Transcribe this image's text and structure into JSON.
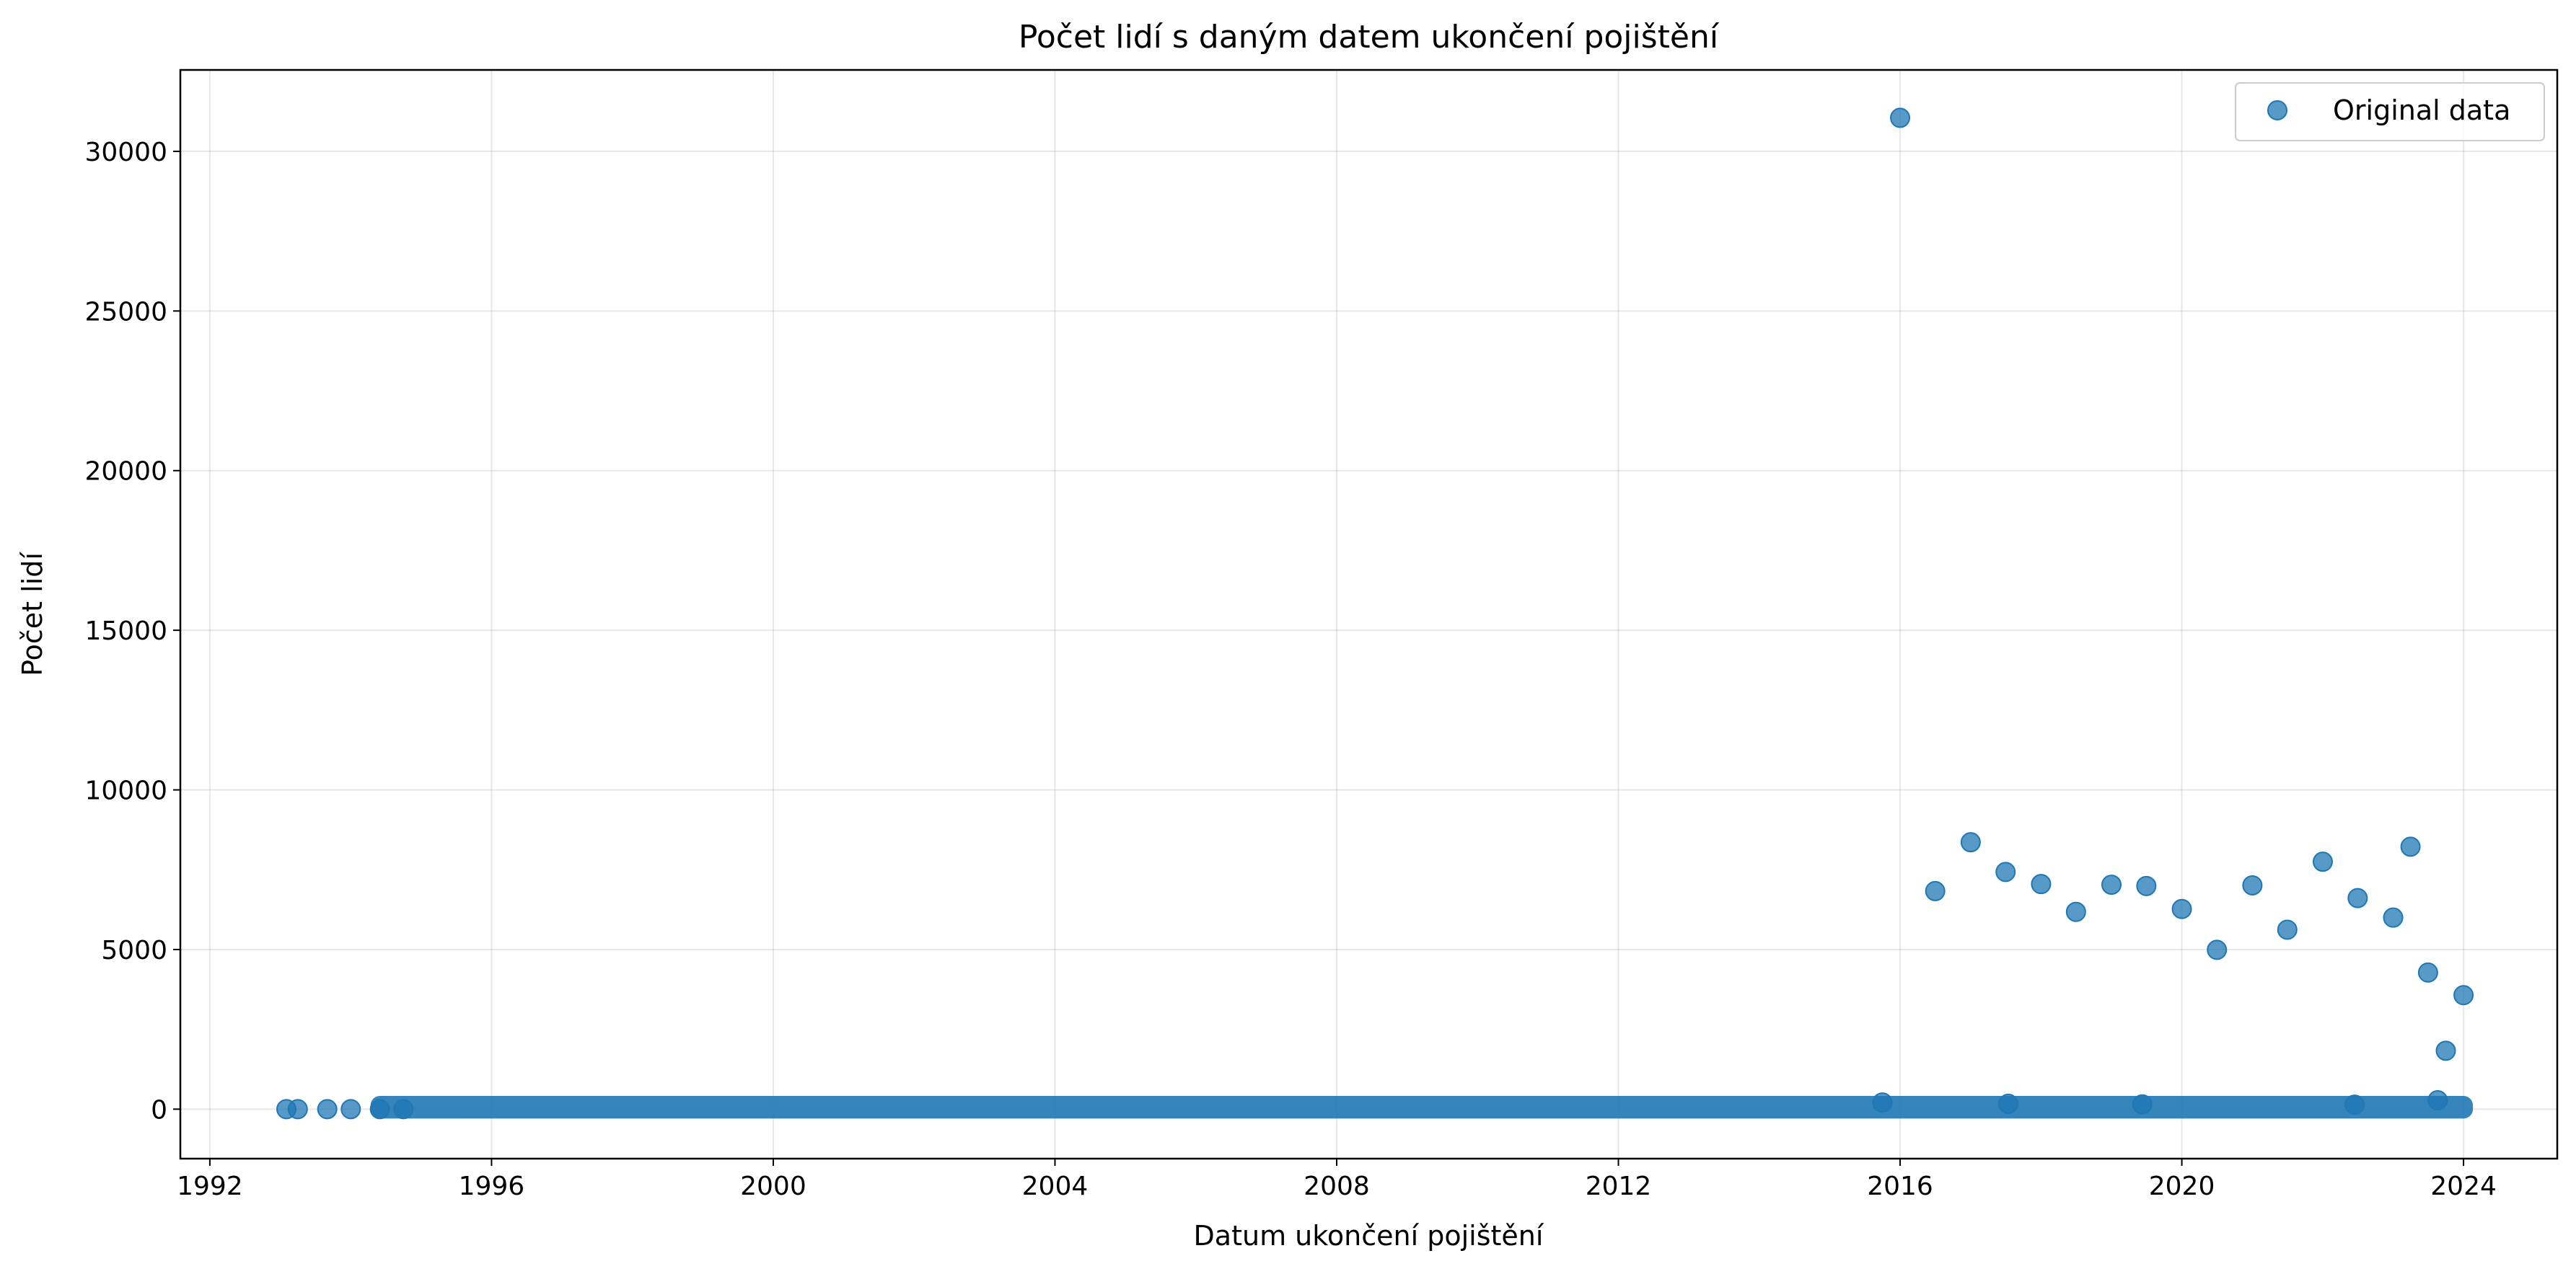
{
  "chart_data": {
    "type": "scatter",
    "title": "Počet lidí s daným datem ukončení pojištění",
    "xlabel": "Datum ukončení pojištění",
    "ylabel": "Počet lidí",
    "xlim": [
      "1991-08-01",
      "2025-05-01"
    ],
    "ylim": [
      -1550,
      32550
    ],
    "x_ticks": [
      "1992",
      "1996",
      "2000",
      "2004",
      "2008",
      "2012",
      "2016",
      "2020",
      "2024"
    ],
    "y_ticks": [
      "0",
      "5000",
      "10000",
      "15000",
      "20000",
      "25000",
      "30000"
    ],
    "x_tick_dates": [
      "1992-01-01",
      "1996-01-01",
      "2000-01-01",
      "2004-01-01",
      "2008-01-01",
      "2012-01-01",
      "2016-01-01",
      "2020-01-01",
      "2024-01-01"
    ],
    "y_tick_values": [
      0,
      5000,
      10000,
      15000,
      20000,
      25000,
      30000
    ],
    "grid": true,
    "legend": {
      "position": "top-right",
      "entries": [
        "Original data"
      ]
    },
    "series": [
      {
        "name": "Original data",
        "color": "#1f77b4",
        "points": [
          {
            "x": "2016-01-01",
            "y": 31050
          },
          {
            "x": "2016-07-01",
            "y": 6830
          },
          {
            "x": "2017-01-01",
            "y": 8360
          },
          {
            "x": "2017-07-01",
            "y": 7430
          },
          {
            "x": "2018-01-01",
            "y": 7050
          },
          {
            "x": "2018-07-01",
            "y": 6180
          },
          {
            "x": "2019-01-01",
            "y": 7030
          },
          {
            "x": "2019-07-01",
            "y": 6990
          },
          {
            "x": "2020-01-01",
            "y": 6270
          },
          {
            "x": "2020-07-01",
            "y": 4990
          },
          {
            "x": "2021-01-01",
            "y": 7010
          },
          {
            "x": "2021-07-01",
            "y": 5620
          },
          {
            "x": "2022-01-01",
            "y": 7750
          },
          {
            "x": "2022-07-01",
            "y": 6610
          },
          {
            "x": "2023-01-01",
            "y": 6000
          },
          {
            "x": "2023-04-01",
            "y": 8220
          },
          {
            "x": "2023-07-01",
            "y": 4280
          },
          {
            "x": "2023-10-01",
            "y": 1830
          },
          {
            "x": "2024-01-01",
            "y": 3570
          },
          {
            "x": "2015-10-01",
            "y": 210
          },
          {
            "x": "2017-07-15",
            "y": 170
          },
          {
            "x": "2019-06-10",
            "y": 150
          },
          {
            "x": "2023-08-20",
            "y": 280
          },
          {
            "x": "2022-06-15",
            "y": 140
          },
          {
            "x": "1993-02-01",
            "y": 0
          },
          {
            "x": "1993-04-01",
            "y": 0
          },
          {
            "x": "1993-09-01",
            "y": 0
          },
          {
            "x": "1994-01-01",
            "y": 0
          },
          {
            "x": "1994-06-01",
            "y": 0
          },
          {
            "x": "1994-10-01",
            "y": 0
          }
        ],
        "dense_band": {
          "x_start": "1994-06-01",
          "x_end": "2024-01-01",
          "y_min": 0,
          "y_max": 120
        }
      }
    ]
  }
}
